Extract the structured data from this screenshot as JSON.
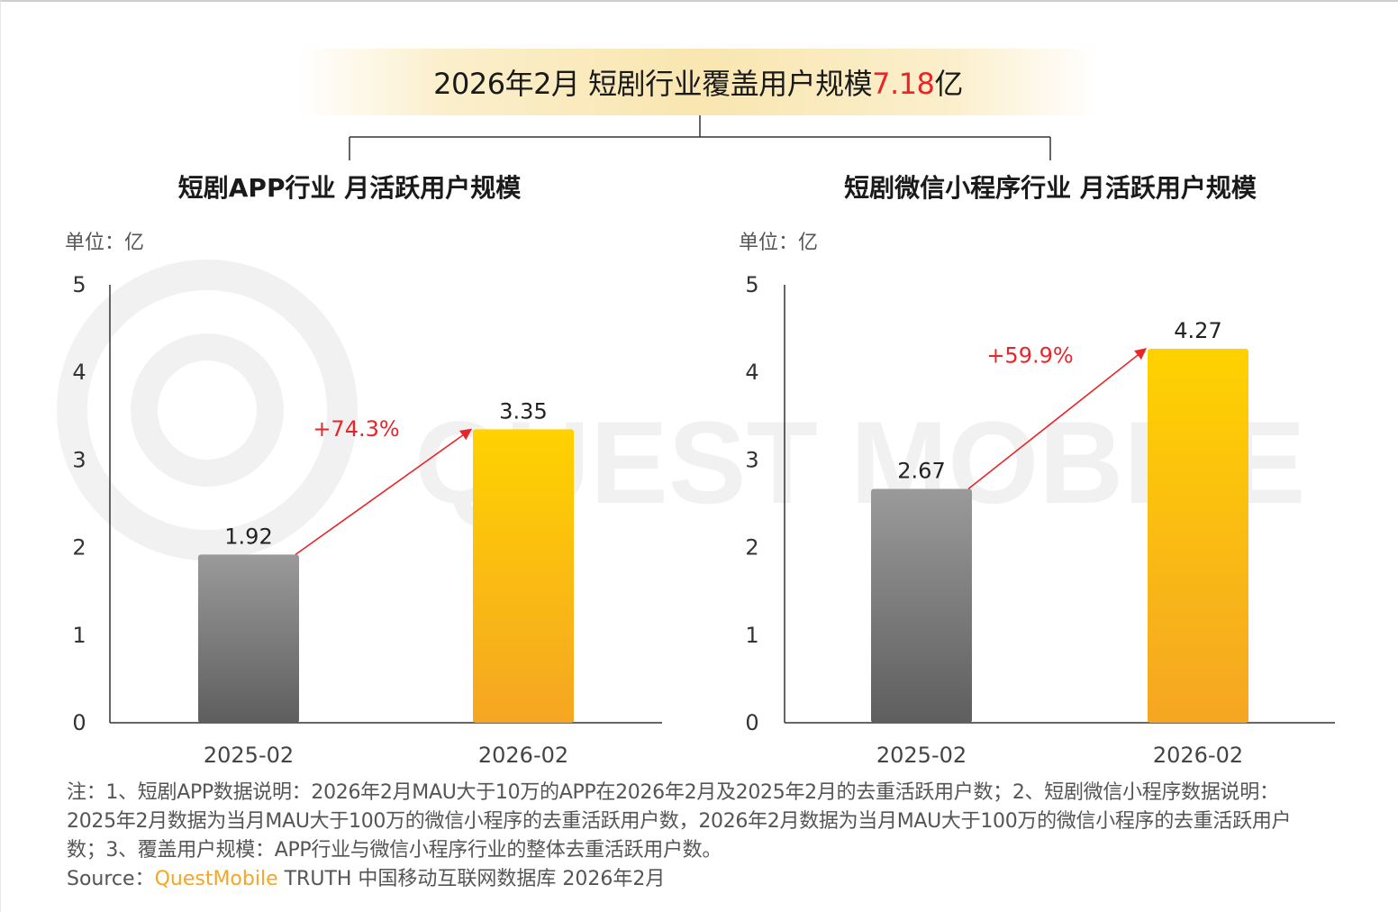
{
  "headline": {
    "prefix": "2026年2月 短剧行业覆盖用户规模",
    "value": "7.18",
    "suffix": "亿"
  },
  "watermark": "QUEST MOBILE",
  "colors": {
    "accent_red": "#e8262a",
    "bar_gray_top": "#9a9a9a",
    "bar_gray_bottom": "#5e5e5e",
    "bar_gold_top": "#ffd200",
    "bar_gold_bottom": "#f5a623",
    "source_brand": "#f5a623"
  },
  "chart_data": [
    {
      "type": "bar",
      "title": "短剧APP行业 月活跃用户规模",
      "unit_label": "单位：亿",
      "categories": [
        "2025-02",
        "2026-02"
      ],
      "values": [
        1.92,
        3.35
      ],
      "value_labels": [
        "1.92",
        "3.35"
      ],
      "growth_label": "+74.3%",
      "ylim": [
        0,
        5
      ],
      "yticks": [
        "0",
        "1",
        "2",
        "3",
        "4",
        "5"
      ],
      "grid": false
    },
    {
      "type": "bar",
      "title": "短剧微信小程序行业 月活跃用户规模",
      "unit_label": "单位：亿",
      "categories": [
        "2025-02",
        "2026-02"
      ],
      "values": [
        2.67,
        4.27
      ],
      "value_labels": [
        "2.67",
        "4.27"
      ],
      "growth_label": "+59.9%",
      "ylim": [
        0,
        5
      ],
      "yticks": [
        "0",
        "1",
        "2",
        "3",
        "4",
        "5"
      ],
      "grid": false
    }
  ],
  "notes": "注：1、短剧APP数据说明：2026年2月MAU大于10万的APP在2026年2月及2025年2月的去重活跃用户数；2、短剧微信小程序数据说明：2025年2月数据为当月MAU大于100万的微信小程序的去重活跃用户数，2026年2月数据为当月MAU大于100万的微信小程序的去重活跃用户数；3、覆盖用户规模：APP行业与微信小程序行业的整体去重活跃用户数。",
  "source": {
    "label": "Source：",
    "brand": "QuestMobile",
    "rest": " TRUTH 中国移动互联网数据库 2026年2月"
  }
}
